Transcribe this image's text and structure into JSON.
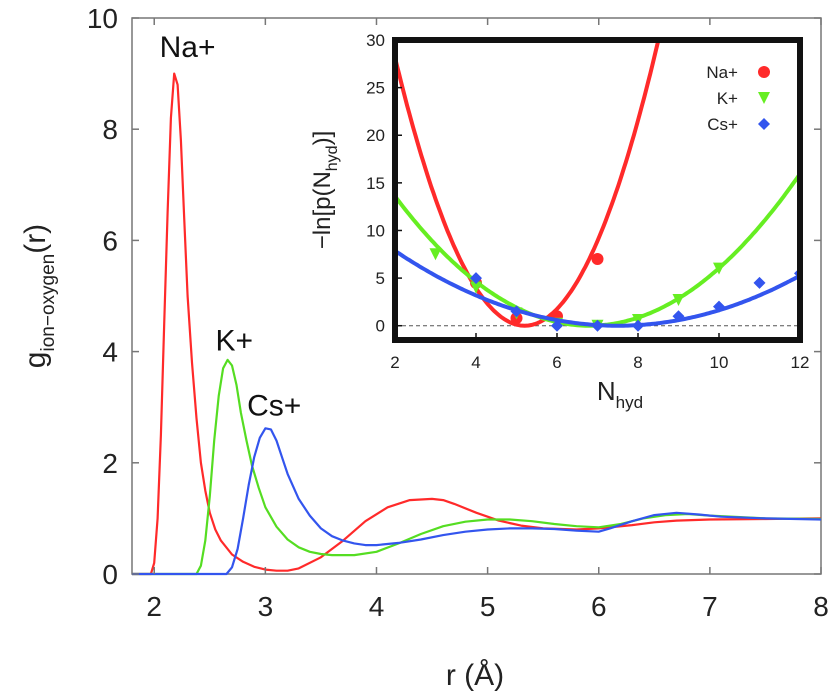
{
  "chart_data": [
    {
      "type": "line",
      "role": "main",
      "xlabel": "r (Å)",
      "ylabel_base": "g",
      "ylabel_sub": "ion−oxygen",
      "ylabel_tail": "(r)",
      "xlim": [
        1.8,
        8.0
      ],
      "ylim": [
        0,
        10
      ],
      "x_ticks": [
        2,
        3,
        4,
        5,
        6,
        7,
        8
      ],
      "y_ticks": [
        0,
        2,
        4,
        6,
        8,
        10
      ],
      "x_tick_labels": [
        "2",
        "3",
        "4",
        "5",
        "6",
        "7",
        "8"
      ],
      "y_tick_labels": [
        "0",
        "2",
        "4",
        "6",
        "8",
        "10"
      ],
      "annotations": [
        {
          "text": "Na+",
          "x": 2.3,
          "y": 9.3
        },
        {
          "text": "K+",
          "x": 2.72,
          "y": 4.02
        },
        {
          "text": "Cs+",
          "x": 3.08,
          "y": 2.85
        }
      ],
      "series": [
        {
          "name": "Na+",
          "color": "#ff2a2a",
          "x": [
            1.8,
            1.97,
            2.0,
            2.03,
            2.06,
            2.09,
            2.12,
            2.15,
            2.18,
            2.21,
            2.24,
            2.27,
            2.3,
            2.34,
            2.38,
            2.42,
            2.46,
            2.5,
            2.55,
            2.6,
            2.7,
            2.8,
            2.9,
            3.0,
            3.1,
            3.2,
            3.3,
            3.5,
            3.7,
            3.9,
            4.1,
            4.3,
            4.5,
            4.6,
            4.7,
            4.9,
            5.1,
            5.3,
            5.5,
            5.8,
            6.0,
            6.3,
            6.5,
            6.7,
            7.0,
            7.5,
            8.0
          ],
          "y": [
            0,
            0,
            0.2,
            1.0,
            2.5,
            4.5,
            6.5,
            8.2,
            9.0,
            8.8,
            7.8,
            6.4,
            5.0,
            3.8,
            2.8,
            2.0,
            1.5,
            1.1,
            0.8,
            0.6,
            0.35,
            0.22,
            0.13,
            0.08,
            0.06,
            0.06,
            0.1,
            0.3,
            0.6,
            0.95,
            1.2,
            1.33,
            1.35,
            1.33,
            1.26,
            1.1,
            0.96,
            0.87,
            0.82,
            0.8,
            0.82,
            0.88,
            0.93,
            0.96,
            0.98,
            0.99,
            1.0
          ]
        },
        {
          "name": "K+",
          "color": "#55dd22",
          "x": [
            1.8,
            2.38,
            2.42,
            2.46,
            2.5,
            2.54,
            2.58,
            2.62,
            2.66,
            2.7,
            2.74,
            2.78,
            2.83,
            2.88,
            2.94,
            3.0,
            3.1,
            3.2,
            3.3,
            3.4,
            3.5,
            3.6,
            3.8,
            4.0,
            4.2,
            4.4,
            4.6,
            4.8,
            5.0,
            5.2,
            5.4,
            5.6,
            5.8,
            6.0,
            6.2,
            6.4,
            6.6,
            6.8,
            7.0,
            7.5,
            8.0
          ],
          "y": [
            0,
            0,
            0.15,
            0.6,
            1.4,
            2.4,
            3.2,
            3.7,
            3.85,
            3.75,
            3.4,
            2.9,
            2.4,
            1.95,
            1.55,
            1.2,
            0.85,
            0.62,
            0.48,
            0.4,
            0.36,
            0.34,
            0.34,
            0.4,
            0.55,
            0.72,
            0.86,
            0.94,
            0.98,
            0.98,
            0.95,
            0.9,
            0.86,
            0.84,
            0.9,
            1.0,
            1.06,
            1.08,
            1.05,
            1.0,
            0.99
          ]
        },
        {
          "name": "Cs+",
          "color": "#3355ee",
          "x": [
            1.8,
            2.65,
            2.7,
            2.75,
            2.8,
            2.85,
            2.9,
            2.95,
            3.0,
            3.05,
            3.1,
            3.15,
            3.2,
            3.3,
            3.4,
            3.5,
            3.6,
            3.7,
            3.8,
            3.9,
            4.0,
            4.2,
            4.4,
            4.6,
            4.8,
            5.0,
            5.2,
            5.4,
            5.6,
            5.8,
            6.0,
            6.1,
            6.3,
            6.5,
            6.7,
            6.9,
            7.1,
            7.5,
            8.0
          ],
          "y": [
            0,
            0,
            0.12,
            0.45,
            1.0,
            1.6,
            2.1,
            2.45,
            2.62,
            2.6,
            2.4,
            2.1,
            1.8,
            1.35,
            1.05,
            0.82,
            0.68,
            0.6,
            0.55,
            0.52,
            0.52,
            0.56,
            0.62,
            0.7,
            0.76,
            0.8,
            0.82,
            0.82,
            0.81,
            0.78,
            0.76,
            0.82,
            0.95,
            1.06,
            1.1,
            1.07,
            1.03,
            1.0,
            0.98
          ]
        }
      ]
    },
    {
      "type": "line",
      "role": "inset",
      "xlabel_base": "N",
      "xlabel_sub": "hyd",
      "ylabel_prefix": "−ln[p(N",
      "ylabel_sub": "hyd",
      "ylabel_suffix": ")]",
      "xlim": [
        2,
        12
      ],
      "ylim": [
        -1.5,
        30
      ],
      "x_ticks": [
        2,
        4,
        6,
        8,
        10,
        12
      ],
      "y_ticks": [
        0,
        5,
        10,
        15,
        20,
        25,
        30
      ],
      "x_tick_labels": [
        "2",
        "4",
        "6",
        "8",
        "10",
        "12"
      ],
      "y_tick_labels": [
        "0",
        "5",
        "10",
        "15",
        "20",
        "25",
        "30"
      ],
      "zero_line": true,
      "legend": {
        "placement": "top-right"
      },
      "series": [
        {
          "name": "Na+",
          "color": "#ff2a2a",
          "marker": "circle",
          "points_x": [
            4,
            5,
            6,
            7
          ],
          "points_y": [
            4.5,
            0.8,
            1.0,
            7.0
          ],
          "fit": {
            "a": 2.75,
            "x0": 5.2,
            "c": 0
          }
        },
        {
          "name": "K+",
          "color": "#66ee22",
          "marker": "triangle-down",
          "points_x": [
            3,
            4,
            5,
            6,
            7,
            8,
            9,
            10
          ],
          "points_y": [
            7.5,
            4.0,
            1.3,
            0.2,
            0.0,
            0.6,
            2.7,
            6.0
          ],
          "fit": {
            "a": 0.59,
            "x0": 6.8,
            "c": 0
          }
        },
        {
          "name": "Cs+",
          "color": "#3355ee",
          "marker": "diamond",
          "points_x": [
            4,
            5,
            6,
            7,
            8,
            9,
            10,
            11,
            12
          ],
          "points_y": [
            5.0,
            1.5,
            0.0,
            0.0,
            0.0,
            1.0,
            2.0,
            4.5,
            5.5
          ],
          "fit": {
            "a": 0.26,
            "x0": 7.5,
            "c": 0
          }
        }
      ]
    }
  ]
}
